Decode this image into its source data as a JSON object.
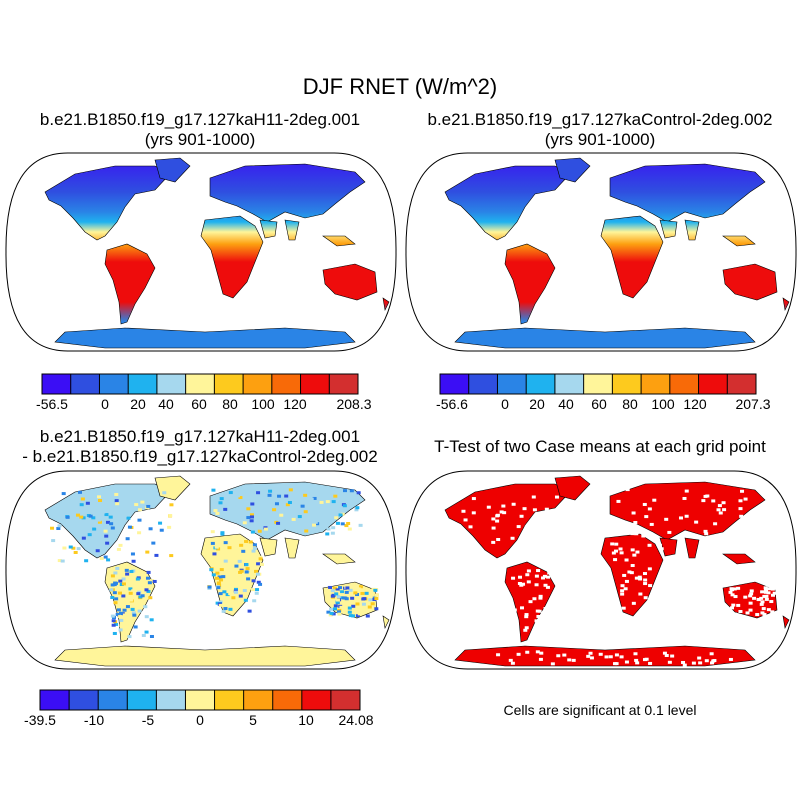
{
  "title": "DJF RNET (W/m^2)",
  "panels": [
    {
      "id": "case1",
      "title_line1": "b.e21.B1850.f19_g17.127kaH11-2deg.001",
      "title_line2": "(yrs 901-1000)",
      "colors": [
        "#3b0ef5",
        "#2f4fe0",
        "#2a84e6",
        "#1fb2ef",
        "#a6d8ee",
        "#fff59a",
        "#fdca1e",
        "#fda010",
        "#f86a08",
        "#ee0c0c",
        "#d32f2f"
      ],
      "colorbar_labels": [
        "-56.5",
        "0",
        "20",
        "40",
        "60",
        "80",
        "100",
        "120",
        "208.3"
      ],
      "label_boundaries": [
        0,
        2,
        3,
        4,
        5,
        6,
        7,
        8,
        11
      ]
    },
    {
      "id": "case2",
      "title_line1": "b.e21.B1850.f19_g17.127kaControl-2deg.002",
      "title_line2": "(yrs 901-1000)",
      "colors": [
        "#3b0ef5",
        "#2f4fe0",
        "#2a84e6",
        "#1fb2ef",
        "#a6d8ee",
        "#fff59a",
        "#fdca1e",
        "#fda010",
        "#f86a08",
        "#ee0c0c",
        "#d32f2f"
      ],
      "colorbar_labels": [
        "-56.6",
        "0",
        "20",
        "40",
        "60",
        "80",
        "100",
        "120",
        "207.3"
      ],
      "label_boundaries": [
        0,
        2,
        3,
        4,
        5,
        6,
        7,
        8,
        11
      ]
    },
    {
      "id": "difference",
      "title_line1": "b.e21.B1850.f19_g17.127kaH11-2deg.001",
      "title_line2": "- b.e21.B1850.f19_g17.127kaControl-2deg.002",
      "colors": [
        "#3b0ef5",
        "#2f4fe0",
        "#2a84e6",
        "#1fb2ef",
        "#a6d8ee",
        "#fff59a",
        "#fdca1e",
        "#fda010",
        "#f86a08",
        "#ee0c0c",
        "#d32f2f"
      ],
      "colorbar_labels": [
        "-39.5",
        "-10",
        "-5",
        "0",
        "5",
        "10",
        "24.08"
      ],
      "label_boundaries": [
        0,
        2,
        4,
        6,
        8,
        10,
        11
      ]
    },
    {
      "id": "ttest",
      "title_line1": "T-Test of two Case means at each grid point",
      "title_line2": "",
      "significant_color": "#ee0000",
      "note": "Cells are significant at 0.1 level"
    }
  ]
}
